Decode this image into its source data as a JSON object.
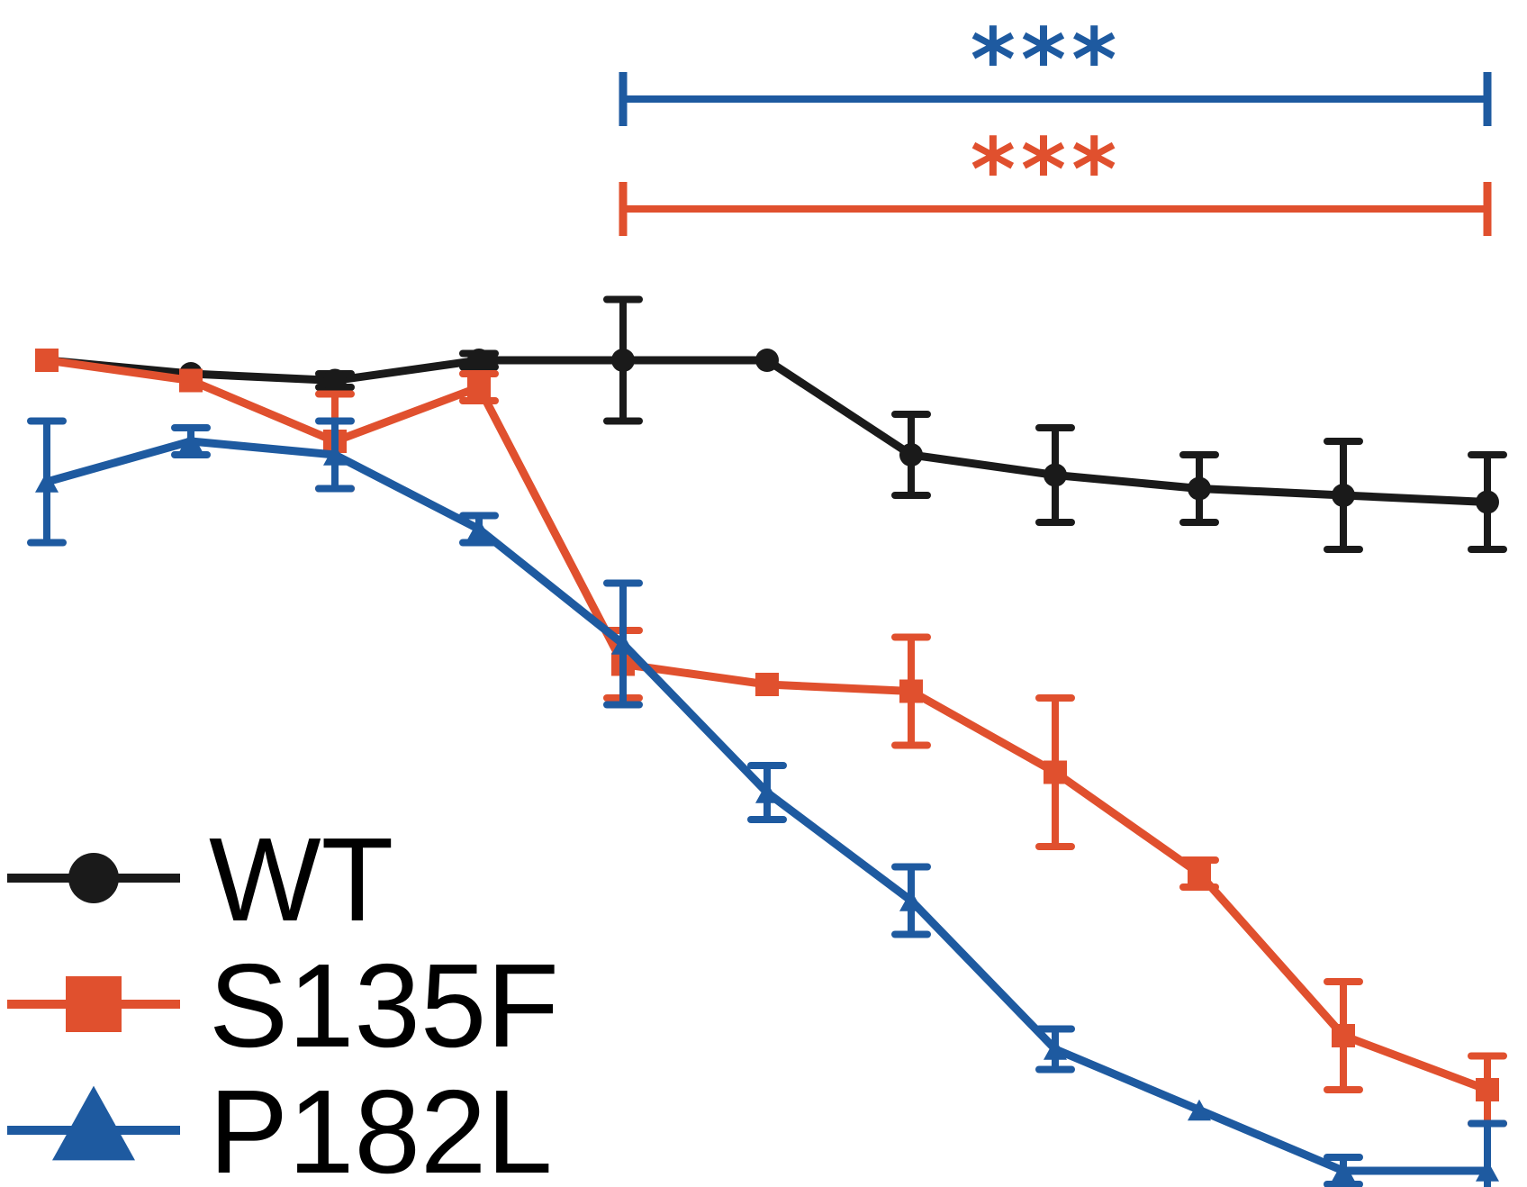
{
  "chart_data": {
    "type": "line",
    "title": "",
    "xlabel": "",
    "ylabel": "",
    "x": [
      1,
      2,
      3,
      4,
      5,
      6,
      7,
      8,
      9,
      10,
      11
    ],
    "ylim": [
      0,
      1
    ],
    "grid": false,
    "legend": "bottom-left",
    "series": [
      {
        "name": "WT",
        "color": "#1a1a1a",
        "marker": "circle",
        "values": [
          1.0,
          0.99,
          0.985,
          1.0,
          1.0,
          1.0,
          0.93,
          0.915,
          0.905,
          0.9,
          0.895
        ],
        "errors": [
          0.0,
          0.0,
          0.005,
          0.005,
          0.045,
          0.0,
          0.03,
          0.035,
          0.025,
          0.04,
          0.035
        ]
      },
      {
        "name": "S135F",
        "color": "#e0502e",
        "marker": "square",
        "values": [
          1.0,
          0.985,
          0.94,
          0.98,
          0.775,
          0.76,
          0.755,
          0.695,
          0.62,
          0.5,
          0.46
        ],
        "errors": [
          0.0,
          0.0,
          0.035,
          0.01,
          0.025,
          0.0,
          0.04,
          0.055,
          0.01,
          0.04,
          0.025
        ]
      },
      {
        "name": "P182L",
        "color": "#1e5aa0",
        "marker": "triangle",
        "values": [
          0.91,
          0.94,
          0.93,
          0.875,
          0.79,
          0.68,
          0.6,
          0.49,
          0.445,
          0.4,
          0.4
        ],
        "errors": [
          0.045,
          0.01,
          0.025,
          0.01,
          0.045,
          0.02,
          0.025,
          0.015,
          0.0,
          0.01,
          0.035
        ]
      }
    ],
    "significance": [
      {
        "label": "***",
        "series": "P182L",
        "color": "#1e5aa0",
        "from_x": 5,
        "to_x": 11
      },
      {
        "label": "***",
        "series": "S135F",
        "color": "#e0502e",
        "from_x": 5,
        "to_x": 11
      }
    ]
  }
}
